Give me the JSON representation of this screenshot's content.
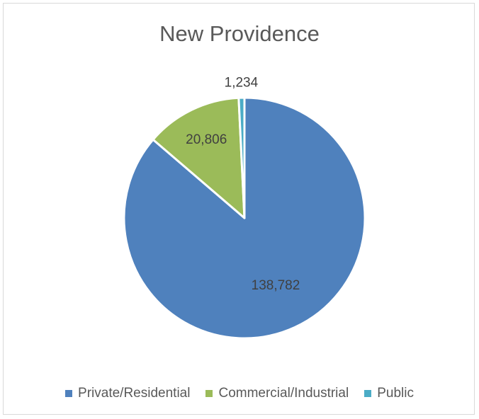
{
  "chart_data": {
    "type": "pie",
    "title": "New Providence",
    "categories": [
      "Private/Residential",
      "Commercial/Industrial",
      "Public"
    ],
    "values": [
      138782,
      20806,
      1234
    ],
    "data_labels": [
      "138,782",
      "20,806",
      "1,234"
    ],
    "colors": [
      "#4f81bd",
      "#9bbb59",
      "#4bacc6"
    ],
    "legend_position": "bottom"
  }
}
